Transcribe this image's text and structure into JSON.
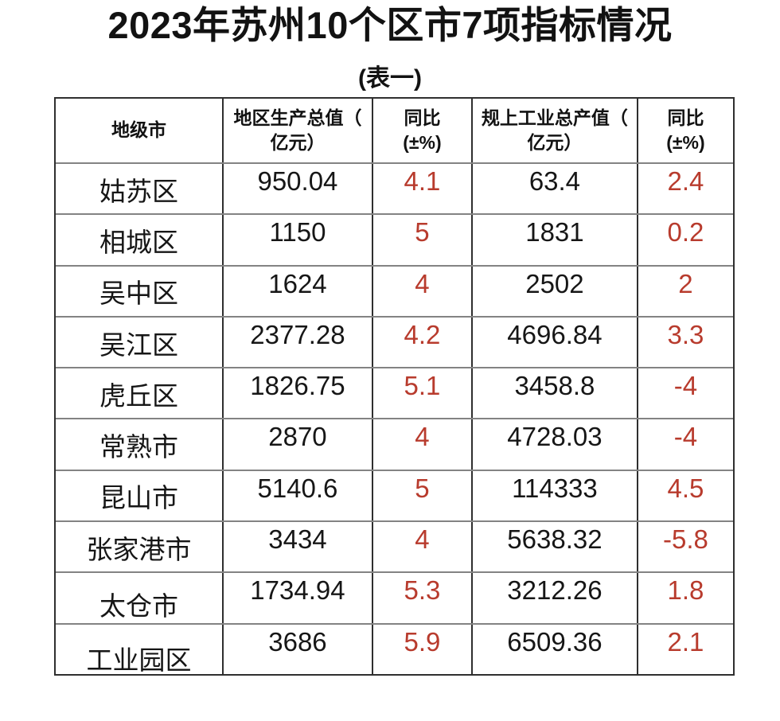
{
  "page": {
    "title": "2023年苏州10个区市7项指标情况",
    "subtitle": "(表一)"
  },
  "colors": {
    "yoy_text_red": "#b83b2d",
    "body_text": "#161616",
    "grid_vertical": "#2f2f2f",
    "grid_horizontal": "#838383"
  },
  "table": {
    "header": [
      {
        "line1": "地级市",
        "line2": ""
      },
      {
        "line1": "地区生产总值（",
        "line2": "亿元）"
      },
      {
        "line1": "同比",
        "line2": "(±%)"
      },
      {
        "line1": "规上工业总产值（",
        "line2": "亿元）"
      },
      {
        "line1": "同比",
        "line2": "(±%)"
      }
    ],
    "rows": [
      {
        "city": "姑苏区",
        "gdp": "950.04",
        "gdp_yoy": "4.1",
        "industrial": "63.4",
        "industrial_yoy": "2.4"
      },
      {
        "city": "相城区",
        "gdp": "1150",
        "gdp_yoy": "5",
        "industrial": "1831",
        "industrial_yoy": "0.2"
      },
      {
        "city": "吴中区",
        "gdp": "1624",
        "gdp_yoy": "4",
        "industrial": "2502",
        "industrial_yoy": "2"
      },
      {
        "city": "吴江区",
        "gdp": "2377.28",
        "gdp_yoy": "4.2",
        "industrial": "4696.84",
        "industrial_yoy": "3.3"
      },
      {
        "city": "虎丘区",
        "gdp": "1826.75",
        "gdp_yoy": "5.1",
        "industrial": "3458.8",
        "industrial_yoy": "-4"
      },
      {
        "city": "常熟市",
        "gdp": "2870",
        "gdp_yoy": "4",
        "industrial": "4728.03",
        "industrial_yoy": "-4"
      },
      {
        "city": "昆山市",
        "gdp": "5140.6",
        "gdp_yoy": "5",
        "industrial": "114333",
        "industrial_yoy": "4.5"
      },
      {
        "city": "张家港市",
        "gdp": "3434",
        "gdp_yoy": "4",
        "industrial": "5638.32",
        "industrial_yoy": "-5.8"
      },
      {
        "city": "太仓市",
        "gdp": "1734.94",
        "gdp_yoy": "5.3",
        "industrial": "3212.26",
        "industrial_yoy": "1.8"
      },
      {
        "city": "工业园区",
        "gdp": "3686",
        "gdp_yoy": "5.9",
        "industrial": "6509.36",
        "industrial_yoy": "2.1"
      }
    ]
  },
  "chart_data": {
    "type": "table",
    "title": "2023年苏州10个区市7项指标情况",
    "subtitle": "(表一)",
    "columns": [
      "地级市",
      "地区生产总值（亿元）",
      "同比(±%)",
      "规上工业总产值（亿元）",
      "同比(±%)"
    ],
    "rows": [
      [
        "姑苏区",
        950.04,
        4.1,
        63.4,
        2.4
      ],
      [
        "相城区",
        1150,
        5,
        1831,
        0.2
      ],
      [
        "吴中区",
        1624,
        4,
        2502,
        2
      ],
      [
        "吴江区",
        2377.28,
        4.2,
        4696.84,
        3.3
      ],
      [
        "虎丘区",
        1826.75,
        5.1,
        3458.8,
        -4
      ],
      [
        "常熟市",
        2870,
        4,
        4728.03,
        -4
      ],
      [
        "昆山市",
        5140.6,
        5,
        114333,
        4.5
      ],
      [
        "张家港市",
        3434,
        4,
        5638.32,
        -5.8
      ],
      [
        "太仓市",
        1734.94,
        5.3,
        3212.26,
        1.8
      ],
      [
        "工业园区",
        3686,
        5.9,
        6509.36,
        2.1
      ]
    ],
    "notes": "同比 columns rendered in red; negative values shown with leading minus"
  }
}
